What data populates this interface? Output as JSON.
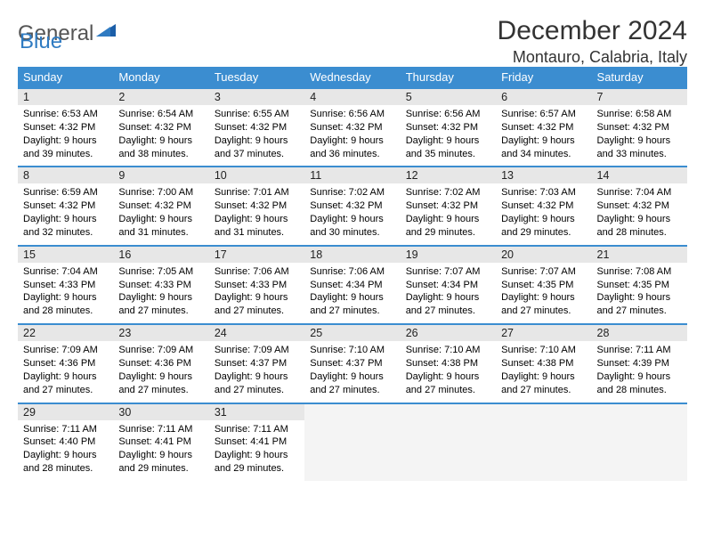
{
  "logo": {
    "gray": "General",
    "blue": "Blue"
  },
  "title": "December 2024",
  "location": "Montauro, Calabria, Italy",
  "colors": {
    "header_bg": "#3b8dd0",
    "daynum_bg": "#e7e7e7",
    "border": "#3b8dd0",
    "empty_bg": "#f4f4f4"
  },
  "weekdays": [
    "Sunday",
    "Monday",
    "Tuesday",
    "Wednesday",
    "Thursday",
    "Friday",
    "Saturday"
  ],
  "weeks": [
    [
      {
        "n": "1",
        "sr": "Sunrise: 6:53 AM",
        "ss": "Sunset: 4:32 PM",
        "d1": "Daylight: 9 hours",
        "d2": "and 39 minutes."
      },
      {
        "n": "2",
        "sr": "Sunrise: 6:54 AM",
        "ss": "Sunset: 4:32 PM",
        "d1": "Daylight: 9 hours",
        "d2": "and 38 minutes."
      },
      {
        "n": "3",
        "sr": "Sunrise: 6:55 AM",
        "ss": "Sunset: 4:32 PM",
        "d1": "Daylight: 9 hours",
        "d2": "and 37 minutes."
      },
      {
        "n": "4",
        "sr": "Sunrise: 6:56 AM",
        "ss": "Sunset: 4:32 PM",
        "d1": "Daylight: 9 hours",
        "d2": "and 36 minutes."
      },
      {
        "n": "5",
        "sr": "Sunrise: 6:56 AM",
        "ss": "Sunset: 4:32 PM",
        "d1": "Daylight: 9 hours",
        "d2": "and 35 minutes."
      },
      {
        "n": "6",
        "sr": "Sunrise: 6:57 AM",
        "ss": "Sunset: 4:32 PM",
        "d1": "Daylight: 9 hours",
        "d2": "and 34 minutes."
      },
      {
        "n": "7",
        "sr": "Sunrise: 6:58 AM",
        "ss": "Sunset: 4:32 PM",
        "d1": "Daylight: 9 hours",
        "d2": "and 33 minutes."
      }
    ],
    [
      {
        "n": "8",
        "sr": "Sunrise: 6:59 AM",
        "ss": "Sunset: 4:32 PM",
        "d1": "Daylight: 9 hours",
        "d2": "and 32 minutes."
      },
      {
        "n": "9",
        "sr": "Sunrise: 7:00 AM",
        "ss": "Sunset: 4:32 PM",
        "d1": "Daylight: 9 hours",
        "d2": "and 31 minutes."
      },
      {
        "n": "10",
        "sr": "Sunrise: 7:01 AM",
        "ss": "Sunset: 4:32 PM",
        "d1": "Daylight: 9 hours",
        "d2": "and 31 minutes."
      },
      {
        "n": "11",
        "sr": "Sunrise: 7:02 AM",
        "ss": "Sunset: 4:32 PM",
        "d1": "Daylight: 9 hours",
        "d2": "and 30 minutes."
      },
      {
        "n": "12",
        "sr": "Sunrise: 7:02 AM",
        "ss": "Sunset: 4:32 PM",
        "d1": "Daylight: 9 hours",
        "d2": "and 29 minutes."
      },
      {
        "n": "13",
        "sr": "Sunrise: 7:03 AM",
        "ss": "Sunset: 4:32 PM",
        "d1": "Daylight: 9 hours",
        "d2": "and 29 minutes."
      },
      {
        "n": "14",
        "sr": "Sunrise: 7:04 AM",
        "ss": "Sunset: 4:32 PM",
        "d1": "Daylight: 9 hours",
        "d2": "and 28 minutes."
      }
    ],
    [
      {
        "n": "15",
        "sr": "Sunrise: 7:04 AM",
        "ss": "Sunset: 4:33 PM",
        "d1": "Daylight: 9 hours",
        "d2": "and 28 minutes."
      },
      {
        "n": "16",
        "sr": "Sunrise: 7:05 AM",
        "ss": "Sunset: 4:33 PM",
        "d1": "Daylight: 9 hours",
        "d2": "and 27 minutes."
      },
      {
        "n": "17",
        "sr": "Sunrise: 7:06 AM",
        "ss": "Sunset: 4:33 PM",
        "d1": "Daylight: 9 hours",
        "d2": "and 27 minutes."
      },
      {
        "n": "18",
        "sr": "Sunrise: 7:06 AM",
        "ss": "Sunset: 4:34 PM",
        "d1": "Daylight: 9 hours",
        "d2": "and 27 minutes."
      },
      {
        "n": "19",
        "sr": "Sunrise: 7:07 AM",
        "ss": "Sunset: 4:34 PM",
        "d1": "Daylight: 9 hours",
        "d2": "and 27 minutes."
      },
      {
        "n": "20",
        "sr": "Sunrise: 7:07 AM",
        "ss": "Sunset: 4:35 PM",
        "d1": "Daylight: 9 hours",
        "d2": "and 27 minutes."
      },
      {
        "n": "21",
        "sr": "Sunrise: 7:08 AM",
        "ss": "Sunset: 4:35 PM",
        "d1": "Daylight: 9 hours",
        "d2": "and 27 minutes."
      }
    ],
    [
      {
        "n": "22",
        "sr": "Sunrise: 7:09 AM",
        "ss": "Sunset: 4:36 PM",
        "d1": "Daylight: 9 hours",
        "d2": "and 27 minutes."
      },
      {
        "n": "23",
        "sr": "Sunrise: 7:09 AM",
        "ss": "Sunset: 4:36 PM",
        "d1": "Daylight: 9 hours",
        "d2": "and 27 minutes."
      },
      {
        "n": "24",
        "sr": "Sunrise: 7:09 AM",
        "ss": "Sunset: 4:37 PM",
        "d1": "Daylight: 9 hours",
        "d2": "and 27 minutes."
      },
      {
        "n": "25",
        "sr": "Sunrise: 7:10 AM",
        "ss": "Sunset: 4:37 PM",
        "d1": "Daylight: 9 hours",
        "d2": "and 27 minutes."
      },
      {
        "n": "26",
        "sr": "Sunrise: 7:10 AM",
        "ss": "Sunset: 4:38 PM",
        "d1": "Daylight: 9 hours",
        "d2": "and 27 minutes."
      },
      {
        "n": "27",
        "sr": "Sunrise: 7:10 AM",
        "ss": "Sunset: 4:38 PM",
        "d1": "Daylight: 9 hours",
        "d2": "and 27 minutes."
      },
      {
        "n": "28",
        "sr": "Sunrise: 7:11 AM",
        "ss": "Sunset: 4:39 PM",
        "d1": "Daylight: 9 hours",
        "d2": "and 28 minutes."
      }
    ],
    [
      {
        "n": "29",
        "sr": "Sunrise: 7:11 AM",
        "ss": "Sunset: 4:40 PM",
        "d1": "Daylight: 9 hours",
        "d2": "and 28 minutes."
      },
      {
        "n": "30",
        "sr": "Sunrise: 7:11 AM",
        "ss": "Sunset: 4:41 PM",
        "d1": "Daylight: 9 hours",
        "d2": "and 29 minutes."
      },
      {
        "n": "31",
        "sr": "Sunrise: 7:11 AM",
        "ss": "Sunset: 4:41 PM",
        "d1": "Daylight: 9 hours",
        "d2": "and 29 minutes."
      },
      null,
      null,
      null,
      null
    ]
  ]
}
